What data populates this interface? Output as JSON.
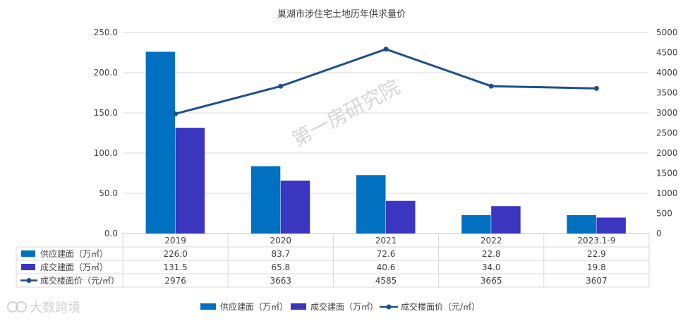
{
  "watermark": "第一房研究院",
  "corner_logo": "大数跨境",
  "chart_data": {
    "type": "bar",
    "title": "巢湖市涉住宅土地历年供求量价",
    "categories": [
      "2019",
      "2020",
      "2021",
      "2022",
      "2023.1-9"
    ],
    "series": [
      {
        "name": "供应建面（万㎡）",
        "type": "bar",
        "axis": "left",
        "color": "#0070C0",
        "values": [
          226.0,
          83.7,
          72.6,
          22.8,
          22.9
        ],
        "labels": [
          "226.0",
          "83.7",
          "72.6",
          "22.8",
          "22.9"
        ]
      },
      {
        "name": "成交建面（万㎡）",
        "type": "bar",
        "axis": "left",
        "color": "#3A36C0",
        "values": [
          131.5,
          65.8,
          40.6,
          34.0,
          19.8
        ],
        "labels": [
          "131.5",
          "65.8",
          "40.6",
          "34.0",
          "19.8"
        ]
      },
      {
        "name": "成交楼面价（元/㎡）",
        "type": "line",
        "axis": "right",
        "color": "#1F4E8C",
        "values": [
          2976,
          3663,
          4585,
          3665,
          3607
        ],
        "labels": [
          "2976",
          "3663",
          "4585",
          "3665",
          "3607"
        ]
      }
    ],
    "y_left": {
      "min": 0,
      "max": 250,
      "ticks": [
        "0.0",
        "50.0",
        "100.0",
        "150.0",
        "200.0",
        "250.0"
      ]
    },
    "y_right": {
      "min": 0,
      "max": 5000,
      "ticks": [
        "0",
        "500",
        "1000",
        "1500",
        "2000",
        "2500",
        "3000",
        "3500",
        "4000",
        "4500",
        "5000"
      ]
    },
    "legend_position": "bottom",
    "data_table": true
  }
}
